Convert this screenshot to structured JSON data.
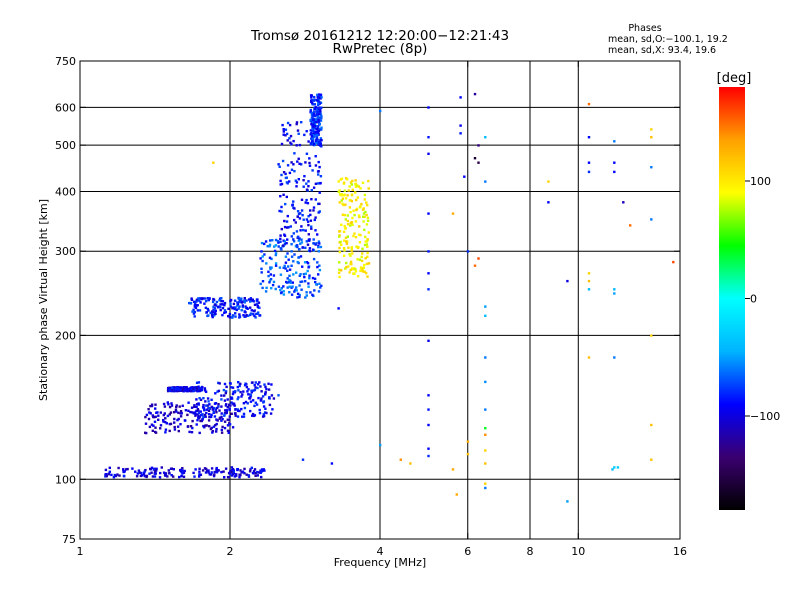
{
  "chart_data": {
    "type": "scatter",
    "title": "Tromsø 20161212 12:20:00−12:21:43",
    "subtitle": "RwPretec (8p)",
    "info": {
      "heading": "Phases",
      "line1": "mean, sd,O:−100.1, 19.2",
      "line2": "mean, sd,X:  93.4, 19.6"
    },
    "xlabel": "Frequency [MHz]",
    "ylabel": "Stationary phase Virtual Height [km]",
    "x_scale": "log",
    "y_scale": "log",
    "xlim": [
      1,
      16
    ],
    "ylim": [
      75,
      750
    ],
    "x_ticks": [
      1,
      2,
      4,
      6,
      8,
      10,
      16
    ],
    "x_tick_labels": [
      "1",
      "2",
      "4",
      "6",
      "8",
      "10",
      "16"
    ],
    "x_gridlines": [
      2,
      4,
      6,
      8,
      10
    ],
    "y_ticks": [
      75,
      100,
      200,
      300,
      400,
      500,
      600,
      750
    ],
    "y_tick_labels": [
      "75",
      "100",
      "200",
      "300",
      "400",
      "500",
      "600",
      "750"
    ],
    "y_gridlines": [
      100,
      200,
      300,
      400,
      500,
      600
    ],
    "grid": true,
    "colorbar": {
      "label": "[deg]",
      "range": [
        -180,
        180
      ],
      "ticks": [
        100,
        0,
        -100
      ],
      "tick_labels": [
        "100",
        "0",
        "−100"
      ],
      "colors": [
        "#000000",
        "#3a0070",
        "#0000ff",
        "#00b4ff",
        "#00ffff",
        "#00ff00",
        "#ffff00",
        "#ffa000",
        "#ff0000"
      ]
    },
    "clusters": [
      {
        "x_range": [
          1.12,
          2.35
        ],
        "y_range": [
          101,
          106
        ],
        "phase": -100
      },
      {
        "x_range": [
          1.35,
          2.05
        ],
        "y_range": [
          125,
          145
        ],
        "phase": -105
      },
      {
        "x_range": [
          1.5,
          1.75
        ],
        "y_range": [
          153,
          156
        ],
        "phase": -95
      },
      {
        "x_range": [
          1.7,
          2.45
        ],
        "y_range": [
          135,
          160
        ],
        "phase": -90
      },
      {
        "x_range": [
          1.65,
          2.3
        ],
        "y_range": [
          218,
          240
        ],
        "phase": -85
      },
      {
        "x_range": [
          2.3,
          3.05
        ],
        "y_range": [
          240,
          320
        ],
        "phase": -70
      },
      {
        "x_range": [
          2.5,
          3.05
        ],
        "y_range": [
          300,
          560
        ],
        "phase": -90
      },
      {
        "x_range": [
          2.9,
          3.05
        ],
        "y_range": [
          500,
          640
        ],
        "phase": -80
      },
      {
        "x_range": [
          3.3,
          3.8
        ],
        "y_range": [
          265,
          430
        ],
        "phase": 95
      }
    ],
    "scatter_points": [
      {
        "x": 5.0,
        "y": 600,
        "phase": -90
      },
      {
        "x": 5.0,
        "y": 520,
        "phase": -85
      },
      {
        "x": 5.0,
        "y": 480,
        "phase": -95
      },
      {
        "x": 5.0,
        "y": 360,
        "phase": -90
      },
      {
        "x": 5.0,
        "y": 300,
        "phase": -85
      },
      {
        "x": 5.0,
        "y": 270,
        "phase": -90
      },
      {
        "x": 5.0,
        "y": 250,
        "phase": -80
      },
      {
        "x": 5.0,
        "y": 195,
        "phase": -95
      },
      {
        "x": 5.0,
        "y": 150,
        "phase": -90
      },
      {
        "x": 5.0,
        "y": 140,
        "phase": -85
      },
      {
        "x": 5.0,
        "y": 130,
        "phase": -90
      },
      {
        "x": 5.0,
        "y": 116,
        "phase": -90
      },
      {
        "x": 5.0,
        "y": 112,
        "phase": -80
      },
      {
        "x": 5.8,
        "y": 630,
        "phase": -90
      },
      {
        "x": 5.8,
        "y": 550,
        "phase": -95
      },
      {
        "x": 5.8,
        "y": 530,
        "phase": -85
      },
      {
        "x": 5.9,
        "y": 430,
        "phase": -90
      },
      {
        "x": 6.0,
        "y": 300,
        "phase": -80
      },
      {
        "x": 6.2,
        "y": 640,
        "phase": -120
      },
      {
        "x": 6.3,
        "y": 460,
        "phase": -150
      },
      {
        "x": 6.2,
        "y": 470,
        "phase": -160
      },
      {
        "x": 6.3,
        "y": 500,
        "phase": -130
      },
      {
        "x": 6.3,
        "y": 290,
        "phase": 160
      },
      {
        "x": 6.2,
        "y": 280,
        "phase": 150
      },
      {
        "x": 6.5,
        "y": 420,
        "phase": -60
      },
      {
        "x": 6.5,
        "y": 520,
        "phase": -40
      },
      {
        "x": 6.5,
        "y": 230,
        "phase": -50
      },
      {
        "x": 6.5,
        "y": 220,
        "phase": -40
      },
      {
        "x": 6.5,
        "y": 180,
        "phase": -60
      },
      {
        "x": 6.5,
        "y": 160,
        "phase": -55
      },
      {
        "x": 6.5,
        "y": 140,
        "phase": -60
      },
      {
        "x": 6.5,
        "y": 128,
        "phase": 40
      },
      {
        "x": 6.5,
        "y": 124,
        "phase": 140
      },
      {
        "x": 6.5,
        "y": 115,
        "phase": 110
      },
      {
        "x": 6.5,
        "y": 108,
        "phase": 120
      },
      {
        "x": 6.5,
        "y": 98,
        "phase": 110
      },
      {
        "x": 6.5,
        "y": 96,
        "phase": -60
      },
      {
        "x": 6.0,
        "y": 120,
        "phase": 130
      },
      {
        "x": 6.0,
        "y": 113,
        "phase": 120
      },
      {
        "x": 5.6,
        "y": 360,
        "phase": 130
      },
      {
        "x": 5.6,
        "y": 105,
        "phase": 130
      },
      {
        "x": 5.7,
        "y": 93,
        "phase": 130
      },
      {
        "x": 4.4,
        "y": 110,
        "phase": 140
      },
      {
        "x": 4.6,
        "y": 108,
        "phase": 120
      },
      {
        "x": 4.0,
        "y": 590,
        "phase": -60
      },
      {
        "x": 4.0,
        "y": 118,
        "phase": -50
      },
      {
        "x": 8.7,
        "y": 420,
        "phase": 110
      },
      {
        "x": 8.7,
        "y": 380,
        "phase": -90
      },
      {
        "x": 9.5,
        "y": 90,
        "phase": -50
      },
      {
        "x": 9.5,
        "y": 260,
        "phase": -100
      },
      {
        "x": 10.5,
        "y": 610,
        "phase": 150
      },
      {
        "x": 10.5,
        "y": 520,
        "phase": -90
      },
      {
        "x": 10.5,
        "y": 460,
        "phase": -90
      },
      {
        "x": 10.5,
        "y": 440,
        "phase": -80
      },
      {
        "x": 10.5,
        "y": 270,
        "phase": 110
      },
      {
        "x": 10.5,
        "y": 260,
        "phase": 120
      },
      {
        "x": 10.5,
        "y": 250,
        "phase": -40
      },
      {
        "x": 10.5,
        "y": 180,
        "phase": 120
      },
      {
        "x": 11.8,
        "y": 510,
        "phase": -60
      },
      {
        "x": 11.8,
        "y": 460,
        "phase": -90
      },
      {
        "x": 11.8,
        "y": 440,
        "phase": -90
      },
      {
        "x": 11.8,
        "y": 250,
        "phase": -40
      },
      {
        "x": 11.8,
        "y": 245,
        "phase": -50
      },
      {
        "x": 11.8,
        "y": 180,
        "phase": -60
      },
      {
        "x": 11.8,
        "y": 106,
        "phase": -30
      },
      {
        "x": 11.7,
        "y": 105,
        "phase": -40
      },
      {
        "x": 12.0,
        "y": 106,
        "phase": -30
      },
      {
        "x": 12.3,
        "y": 380,
        "phase": -110
      },
      {
        "x": 12.7,
        "y": 340,
        "phase": 150
      },
      {
        "x": 14.0,
        "y": 540,
        "phase": 110
      },
      {
        "x": 14.0,
        "y": 520,
        "phase": 120
      },
      {
        "x": 14.0,
        "y": 450,
        "phase": -60
      },
      {
        "x": 14.0,
        "y": 350,
        "phase": -60
      },
      {
        "x": 14.0,
        "y": 200,
        "phase": 110
      },
      {
        "x": 14.0,
        "y": 130,
        "phase": 120
      },
      {
        "x": 14.0,
        "y": 110,
        "phase": 120
      },
      {
        "x": 15.5,
        "y": 285,
        "phase": 160
      },
      {
        "x": 1.85,
        "y": 460,
        "phase": 110
      },
      {
        "x": 2.5,
        "y": 150,
        "phase": -70
      },
      {
        "x": 3.2,
        "y": 108,
        "phase": -90
      },
      {
        "x": 3.3,
        "y": 228,
        "phase": -90
      },
      {
        "x": 2.8,
        "y": 110,
        "phase": -80
      }
    ]
  }
}
